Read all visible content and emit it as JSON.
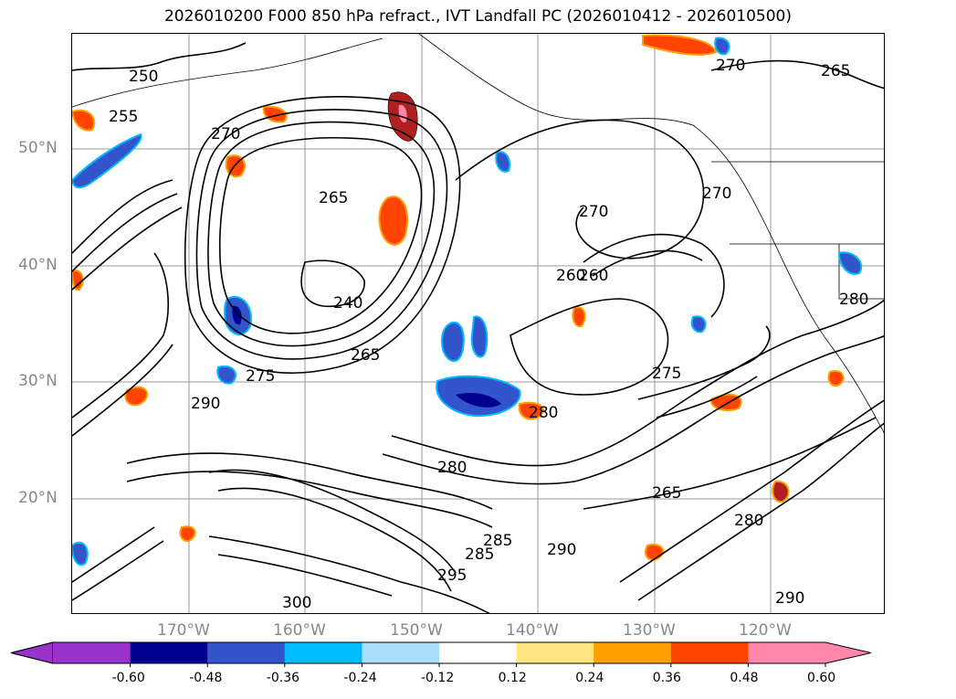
{
  "title": "2026010200 F000 850 hPa refract., IVT Landfall PC (2026010412 - 2026010500)",
  "map": {
    "lat_labels": [
      "50°N",
      "40°N",
      "30°N",
      "20°N"
    ],
    "lon_labels": [
      "170°W",
      "160°W",
      "150°W",
      "140°W",
      "130°W",
      "120°W"
    ],
    "contour_labels": [
      "250",
      "255",
      "270",
      "265",
      "270",
      "265",
      "240",
      "260",
      "265",
      "270",
      "275",
      "280",
      "285",
      "290",
      "295",
      "300",
      "280",
      "265",
      "290",
      "280",
      "260",
      "270",
      "275",
      "280",
      "285",
      "290"
    ],
    "contour_color": "#000000",
    "grid_color": "#999999"
  },
  "colorbar": {
    "colors": [
      "#9933cc",
      "#000090",
      "#3355cc",
      "#00bbff",
      "#aaddf7",
      "#ffffff",
      "#ffe680",
      "#ffa000",
      "#ff4400",
      "#b02020",
      "#ff88aa"
    ],
    "ticks": [
      "-0.60",
      "-0.48",
      "-0.36",
      "-0.24",
      "-0.12",
      "0.12",
      "0.24",
      "0.36",
      "0.48",
      "0.60"
    ]
  }
}
